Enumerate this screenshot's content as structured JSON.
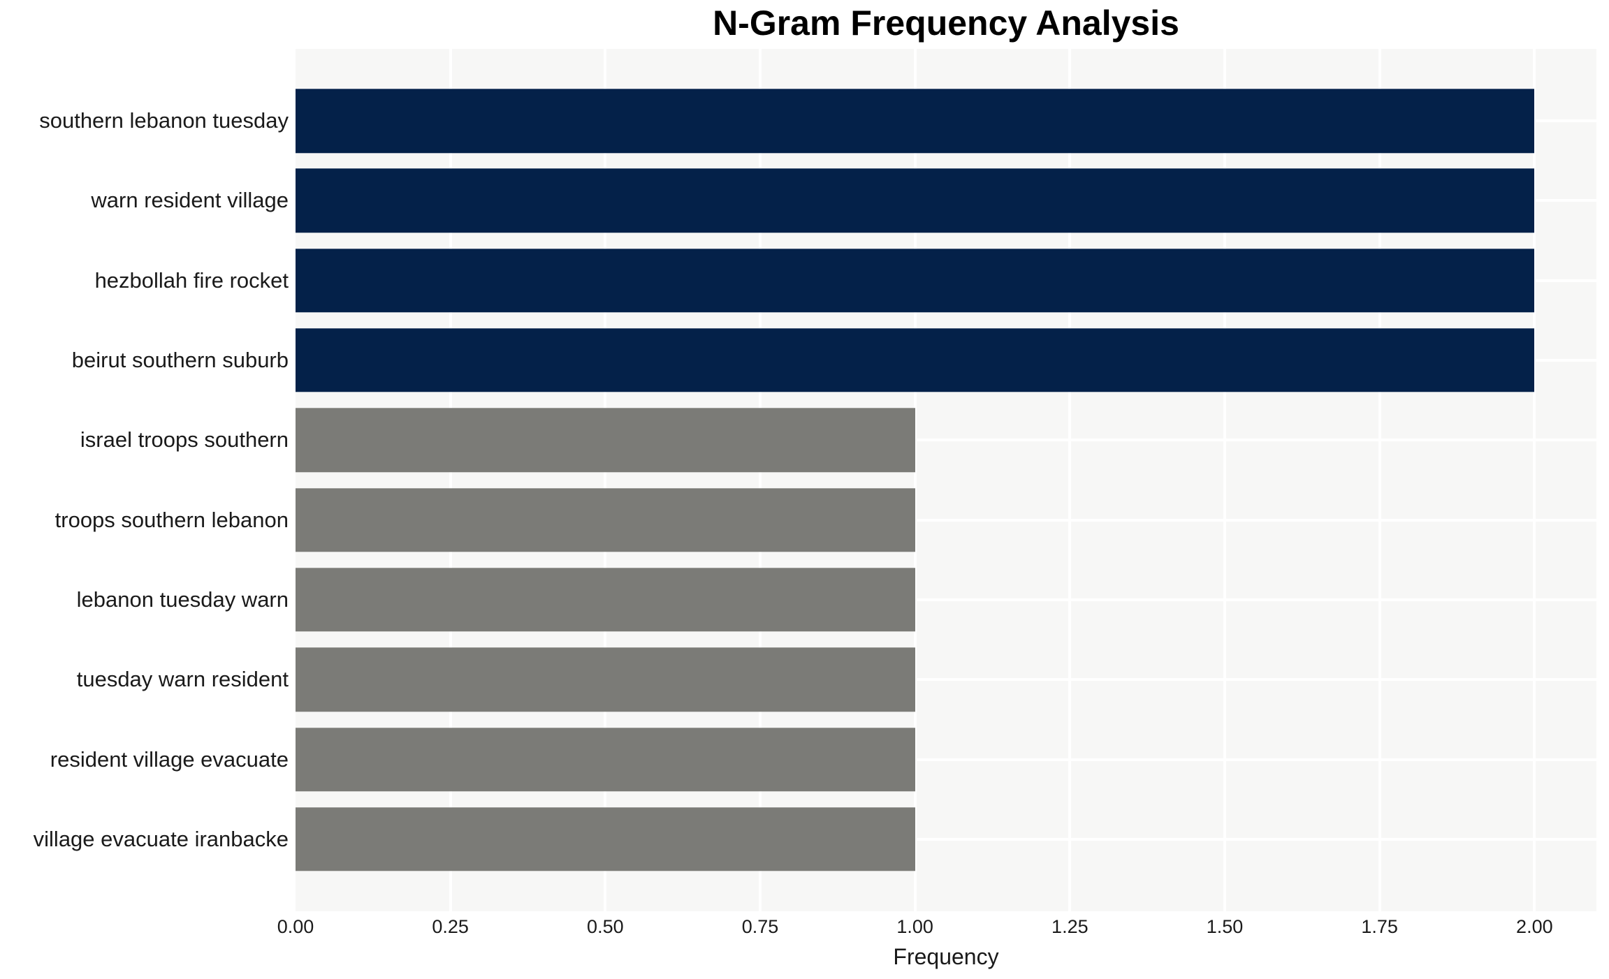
{
  "title": "N-Gram Frequency Analysis",
  "chart_data": {
    "type": "bar",
    "orientation": "horizontal",
    "title": "N-Gram Frequency Analysis",
    "xlabel": "Frequency",
    "ylabel": "",
    "categories": [
      "southern lebanon tuesday",
      "warn resident village",
      "hezbollah fire rocket",
      "beirut southern suburb",
      "israel troops southern",
      "troops southern lebanon",
      "lebanon tuesday warn",
      "tuesday warn resident",
      "resident village evacuate",
      "village evacuate iranbacke"
    ],
    "values": [
      2,
      2,
      2,
      2,
      1,
      1,
      1,
      1,
      1,
      1
    ],
    "xlim": [
      0,
      2.1
    ],
    "xticks": [
      0,
      0.25,
      0.5,
      0.75,
      1,
      1.25,
      1.5,
      1.75,
      2
    ],
    "xtick_labels": [
      "0.00",
      "0.25",
      "0.50",
      "0.75",
      "1.00",
      "1.25",
      "1.50",
      "1.75",
      "2.00"
    ],
    "grid": true,
    "legend": false,
    "bar_height_fraction": 0.8,
    "color_rule": "bars with frequency 2 are navy, bars with frequency 1 are gray",
    "colors": {
      "high_freq_bar": "#042149",
      "low_freq_bar": "#7b7b77",
      "plot_background": "#f7f7f6",
      "gridline": "#ffffff",
      "title_text": "#000000",
      "axis_text": "#1a1a1a"
    }
  }
}
